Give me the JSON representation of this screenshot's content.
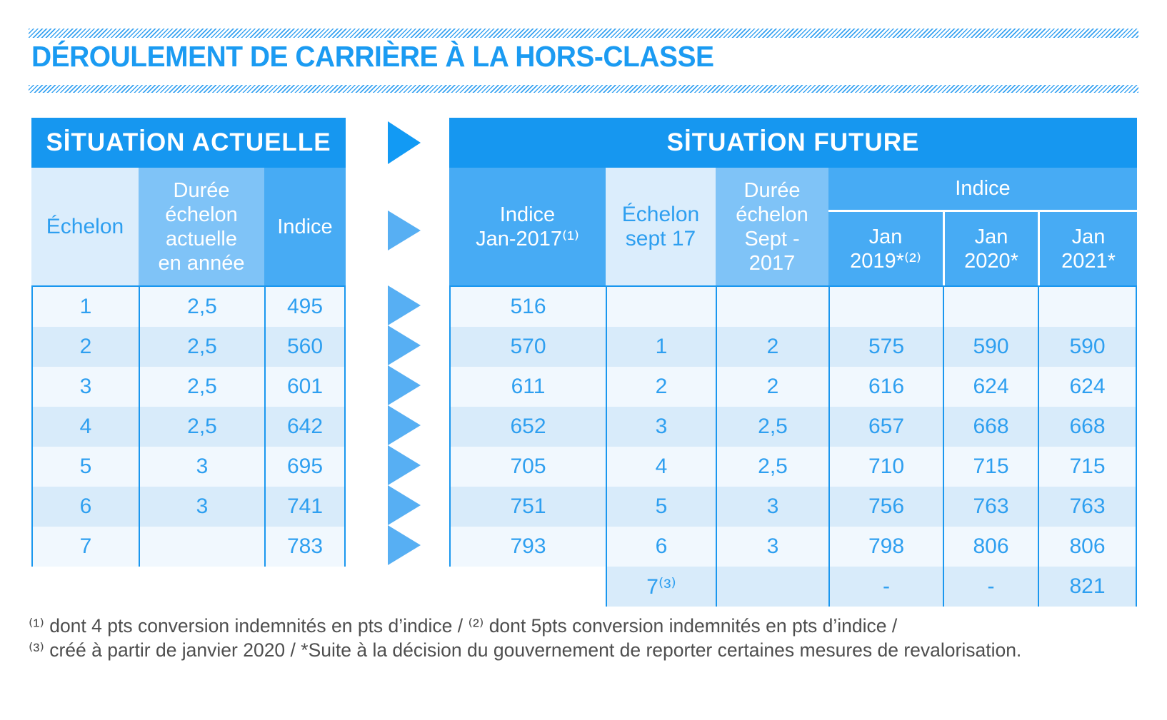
{
  "title": "DÉROULEMENT DE CARRIÈRE À LA HORS-CLASSE",
  "current": {
    "header": "SİTUATİON ACTUELLE",
    "col_echelon": "Échelon",
    "col_duree": "Durée\néchelon\nactuelle\nen année",
    "col_indice": "Indice",
    "rows": [
      [
        "1",
        "2,5",
        "495"
      ],
      [
        "2",
        "2,5",
        "560"
      ],
      [
        "3",
        "2,5",
        "601"
      ],
      [
        "4",
        "2,5",
        "642"
      ],
      [
        "5",
        "3",
        "695"
      ],
      [
        "6",
        "3",
        "741"
      ],
      [
        "7",
        "",
        "783"
      ]
    ]
  },
  "future": {
    "header": "SİTUATİON FUTURE",
    "col_indice_jan2017": "Indice\nJan-2017⁽¹⁾",
    "col_echelon_sept17": "Échelon\nsept 17",
    "col_duree_sept2017": "Durée\néchelon\nSept -\n2017",
    "indice_group_label": "Indice",
    "col_jan2019": "Jan\n2019*⁽²⁾",
    "col_jan2020": "Jan\n2020*",
    "col_jan2021": "Jan\n2021*",
    "rows": [
      [
        "516",
        "",
        "",
        "",
        "",
        ""
      ],
      [
        "570",
        "1",
        "2",
        "575",
        "590",
        "590"
      ],
      [
        "611",
        "2",
        "2",
        "616",
        "624",
        "624"
      ],
      [
        "652",
        "3",
        "2,5",
        "657",
        "668",
        "668"
      ],
      [
        "705",
        "4",
        "2,5",
        "710",
        "715",
        "715"
      ],
      [
        "751",
        "5",
        "3",
        "756",
        "763",
        "763"
      ],
      [
        "793",
        "6",
        "3",
        "798",
        "806",
        "806"
      ],
      [
        null,
        "7⁽³⁾",
        "",
        "-",
        "-",
        "821"
      ]
    ]
  },
  "footnotes": {
    "line1": "⁽¹⁾ dont 4 pts conversion indemnités en pts d’indice / ⁽²⁾ dont 5pts conversion indemnités en pts d’indice /",
    "line2": "⁽³⁾ créé à partir de janvier 2020 / *Suite à la décision du gouvernement de reporter certaines mesures de revalorisation."
  },
  "colors": {
    "accent_blue": "#1697f0",
    "title_blue": "#1b9bf2",
    "indice_header_bg": "#47abf4",
    "duree_header_bg": "#7fc3f7",
    "echelon_header_bg": "#dbedfc",
    "row_light": "#f1f8fe",
    "row_dark": "#d8ebfa",
    "cell_text": "#2e9ff0",
    "cell_border": "#1a97ef",
    "arrow_light": "#57aff3",
    "arrow_dark": "#129af4",
    "footnote_text": "#4e4e4e"
  }
}
